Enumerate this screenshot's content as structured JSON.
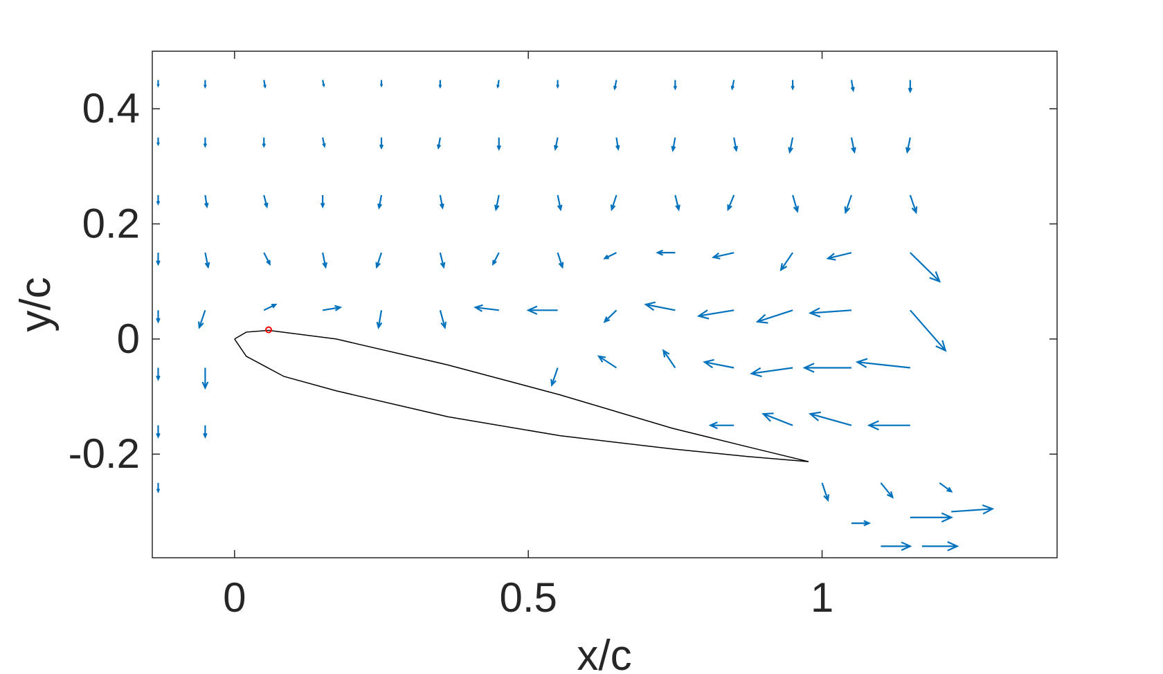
{
  "chart_data": {
    "type": "quiver",
    "xlabel": "x/c",
    "ylabel": "y/c",
    "xlim": [
      -0.14,
      1.4
    ],
    "ylim": [
      -0.38,
      0.5
    ],
    "xticks": [
      0,
      0.5,
      1
    ],
    "yticks": [
      -0.2,
      0,
      0.2,
      0.4
    ],
    "box": true,
    "color": "#0072bd",
    "vectors": [
      [
        -0.13,
        0.45,
        0,
        -0.01
      ],
      [
        -0.05,
        0.45,
        0,
        -0.012
      ],
      [
        0.05,
        0.45,
        0.002,
        -0.012
      ],
      [
        0.15,
        0.45,
        0.002,
        -0.01
      ],
      [
        0.25,
        0.45,
        0,
        -0.01
      ],
      [
        0.35,
        0.45,
        0,
        -0.012
      ],
      [
        0.45,
        0.45,
        -0.002,
        -0.012
      ],
      [
        0.55,
        0.45,
        0,
        -0.012
      ],
      [
        0.65,
        0.45,
        -0.003,
        -0.015
      ],
      [
        0.75,
        0.45,
        0,
        -0.015
      ],
      [
        0.85,
        0.45,
        -0.003,
        -0.015
      ],
      [
        0.95,
        0.45,
        0,
        -0.015
      ],
      [
        1.05,
        0.45,
        0.003,
        -0.018
      ],
      [
        1.15,
        0.45,
        0,
        -0.02
      ],
      [
        -0.13,
        0.35,
        0,
        -0.012
      ],
      [
        -0.05,
        0.35,
        0,
        -0.015
      ],
      [
        0.05,
        0.35,
        0,
        -0.015
      ],
      [
        0.15,
        0.35,
        0.003,
        -0.015
      ],
      [
        0.25,
        0.35,
        0,
        -0.018
      ],
      [
        0.35,
        0.35,
        -0.003,
        -0.018
      ],
      [
        0.45,
        0.35,
        0,
        -0.02
      ],
      [
        0.55,
        0.35,
        -0.004,
        -0.02
      ],
      [
        0.65,
        0.35,
        0.003,
        -0.02
      ],
      [
        0.75,
        0.35,
        -0.004,
        -0.022
      ],
      [
        0.85,
        0.35,
        0.004,
        -0.022
      ],
      [
        0.95,
        0.35,
        -0.005,
        -0.025
      ],
      [
        1.05,
        0.35,
        0.005,
        -0.025
      ],
      [
        1.15,
        0.35,
        -0.005,
        -0.025
      ],
      [
        -0.13,
        0.25,
        0,
        -0.015
      ],
      [
        -0.05,
        0.25,
        0.003,
        -0.02
      ],
      [
        0.05,
        0.25,
        0.005,
        -0.02
      ],
      [
        0.15,
        0.25,
        0,
        -0.02
      ],
      [
        0.25,
        0.25,
        -0.004,
        -0.022
      ],
      [
        0.35,
        0.25,
        0.004,
        -0.022
      ],
      [
        0.45,
        0.25,
        -0.005,
        -0.025
      ],
      [
        0.55,
        0.25,
        0.005,
        -0.025
      ],
      [
        0.65,
        0.25,
        -0.008,
        -0.025
      ],
      [
        0.75,
        0.25,
        0.006,
        -0.025
      ],
      [
        0.85,
        0.25,
        -0.01,
        -0.025
      ],
      [
        0.95,
        0.25,
        0.008,
        -0.028
      ],
      [
        1.05,
        0.25,
        -0.01,
        -0.03
      ],
      [
        1.15,
        0.25,
        0.01,
        -0.03
      ],
      [
        -0.13,
        0.15,
        0,
        -0.02
      ],
      [
        -0.05,
        0.15,
        0.005,
        -0.025
      ],
      [
        0.05,
        0.15,
        0.01,
        -0.02
      ],
      [
        0.15,
        0.15,
        0.005,
        -0.025
      ],
      [
        0.25,
        0.15,
        -0.008,
        -0.025
      ],
      [
        0.35,
        0.15,
        0.006,
        -0.025
      ],
      [
        0.45,
        0.15,
        -0.01,
        -0.02
      ],
      [
        0.55,
        0.15,
        0.008,
        -0.025
      ],
      [
        0.65,
        0.15,
        -0.02,
        -0.01
      ],
      [
        0.75,
        0.15,
        -0.03,
        0
      ],
      [
        0.85,
        0.15,
        -0.035,
        -0.008
      ],
      [
        0.95,
        0.15,
        -0.02,
        -0.03
      ],
      [
        1.05,
        0.15,
        -0.04,
        -0.01
      ],
      [
        1.15,
        0.15,
        0.05,
        -0.05
      ],
      [
        -0.13,
        0.05,
        0,
        -0.02
      ],
      [
        -0.05,
        0.05,
        -0.01,
        -0.03
      ],
      [
        0.05,
        0.05,
        0.02,
        0.01
      ],
      [
        0.15,
        0.05,
        0.03,
        0.005
      ],
      [
        0.25,
        0.05,
        -0.005,
        -0.03
      ],
      [
        0.35,
        0.05,
        0.008,
        -0.03
      ],
      [
        0.45,
        0.05,
        -0.04,
        0.005
      ],
      [
        0.55,
        0.05,
        -0.05,
        0
      ],
      [
        0.65,
        0.05,
        -0.02,
        -0.02
      ],
      [
        0.75,
        0.05,
        -0.05,
        0.01
      ],
      [
        0.85,
        0.05,
        -0.06,
        -0.01
      ],
      [
        0.95,
        0.05,
        -0.06,
        -0.02
      ],
      [
        1.05,
        0.05,
        -0.07,
        -0.005
      ],
      [
        1.15,
        0.05,
        0.06,
        -0.07
      ],
      [
        -0.13,
        -0.05,
        0,
        -0.02
      ],
      [
        -0.05,
        -0.05,
        0,
        -0.035
      ],
      [
        0.55,
        -0.05,
        -0.01,
        -0.03
      ],
      [
        0.65,
        -0.05,
        -0.03,
        0.02
      ],
      [
        0.75,
        -0.05,
        -0.02,
        0.03
      ],
      [
        0.85,
        -0.05,
        -0.05,
        0.01
      ],
      [
        0.95,
        -0.05,
        -0.07,
        -0.01
      ],
      [
        1.05,
        -0.05,
        -0.08,
        0
      ],
      [
        1.15,
        -0.05,
        -0.09,
        0.01
      ],
      [
        -0.13,
        -0.15,
        0,
        -0.02
      ],
      [
        -0.05,
        -0.15,
        0,
        -0.02
      ],
      [
        0.85,
        -0.15,
        -0.04,
        0
      ],
      [
        0.95,
        -0.15,
        -0.05,
        0.02
      ],
      [
        1.05,
        -0.15,
        -0.07,
        0.02
      ],
      [
        1.15,
        -0.15,
        -0.07,
        0
      ],
      [
        -0.13,
        -0.25,
        0,
        -0.015
      ],
      [
        1.0,
        -0.25,
        0.01,
        -0.03
      ],
      [
        1.1,
        -0.25,
        0.02,
        -0.025
      ],
      [
        1.2,
        -0.25,
        0.02,
        -0.015
      ],
      [
        1.05,
        -0.32,
        0.03,
        0
      ],
      [
        1.15,
        -0.31,
        0.07,
        0
      ],
      [
        1.22,
        -0.3,
        0.07,
        0.005
      ],
      [
        1.1,
        -0.36,
        0.05,
        0
      ],
      [
        1.17,
        -0.36,
        0.06,
        0
      ]
    ],
    "airfoil": {
      "color": "#000000",
      "x": [
        0,
        0.02,
        0.058,
        0.173,
        0.363,
        0.554,
        0.745,
        0.872,
        0.977,
        0.872,
        0.745,
        0.554,
        0.363,
        0.173,
        0.084,
        0.02,
        0
      ],
      "y": [
        0,
        0.012,
        0.015,
        0,
        -0.045,
        -0.097,
        -0.155,
        -0.187,
        -0.213,
        -0.204,
        -0.191,
        -0.168,
        -0.135,
        -0.09,
        -0.065,
        -0.03,
        0
      ]
    },
    "marker": {
      "color": "#ff0000",
      "x": 0.058,
      "y": 0.016
    }
  }
}
